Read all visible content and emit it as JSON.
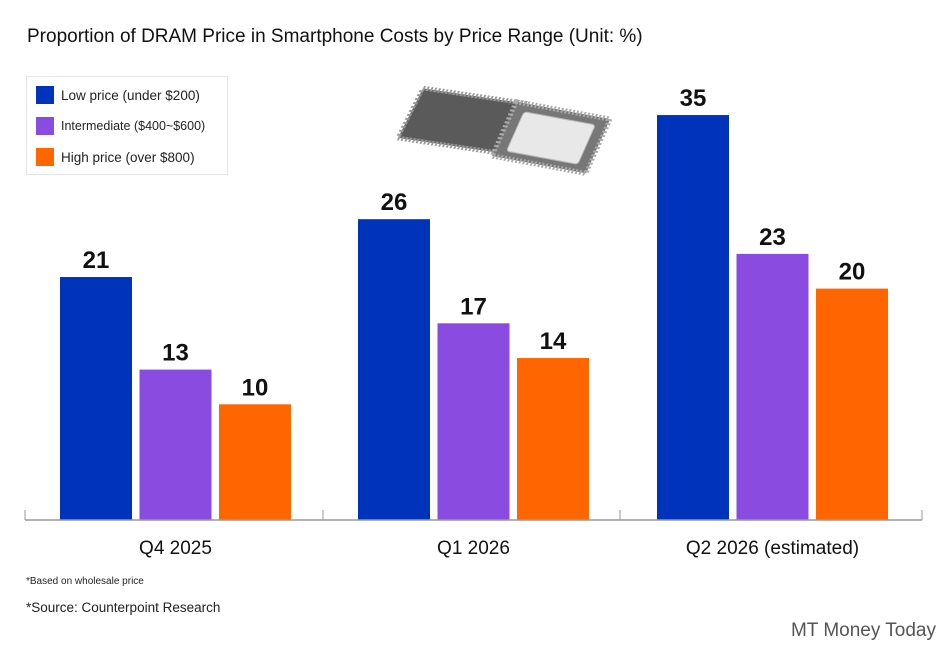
{
  "chart_data": {
    "type": "bar",
    "title": "Proportion of DRAM Price in Smartphone Costs by Price Range (Unit: %)",
    "categories": [
      "Q4 2025",
      "Q1 2026",
      "Q2 2026 (estimated)"
    ],
    "series": [
      {
        "name": "Low price (under $200)",
        "values": [
          21,
          26,
          35
        ],
        "color": "#0033bb"
      },
      {
        "name": "Intermediate ($400~$600)",
        "values": [
          13,
          17,
          23
        ],
        "color": "#8a4ce0"
      },
      {
        "name": "High price (over $800)",
        "values": [
          10,
          14,
          20
        ],
        "color": "#ff6600"
      }
    ],
    "ylim": [
      0,
      38
    ],
    "grid": false,
    "legend": "top-left",
    "xlabel": "",
    "ylabel": ""
  },
  "notes": {
    "basis": "*Based on wholesale price",
    "source": "*Source: Counterpoint Research"
  },
  "brand": "MT Money Today"
}
